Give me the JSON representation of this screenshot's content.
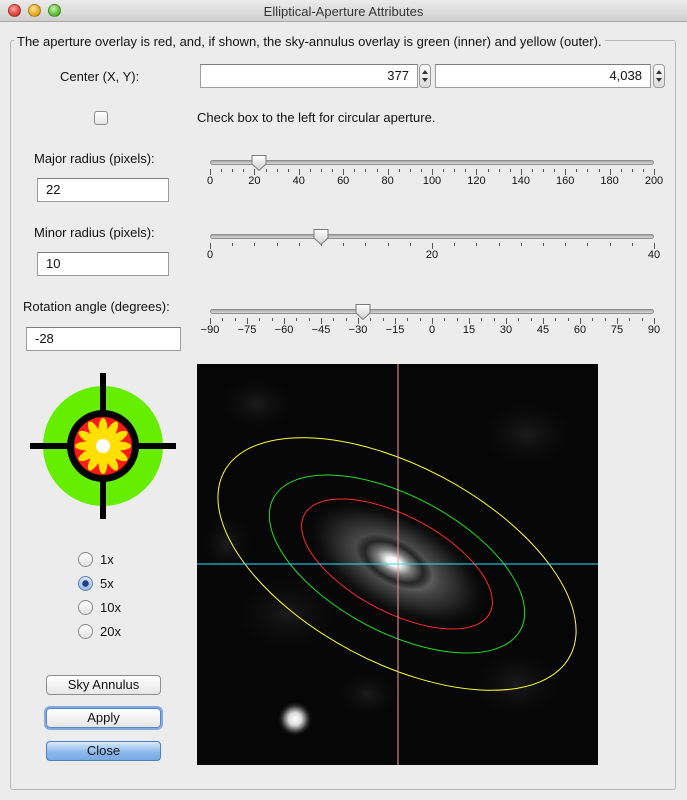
{
  "window": {
    "title": "Elliptical-Aperture Attributes"
  },
  "group_title": "The aperture overlay is red, and, if shown, the sky-annulus overlay is green (inner) and yellow (outer).",
  "center": {
    "label": "Center (X, Y):",
    "x_value": "377",
    "y_value": "4,038"
  },
  "circular": {
    "checked": false,
    "label": "Check box to the left for circular aperture."
  },
  "major": {
    "label": "Major radius (pixels):",
    "value": "22",
    "slider": {
      "min": 0,
      "max": 200,
      "value": 22,
      "major_step": 20,
      "minor_step": 5,
      "labels": [
        "0",
        "20",
        "40",
        "60",
        "80",
        "100",
        "120",
        "140",
        "160",
        "180",
        "200"
      ]
    }
  },
  "minor": {
    "label": "Minor radius (pixels):",
    "value": "10",
    "slider": {
      "min": 0,
      "max": 40,
      "value": 10,
      "major_step": 20,
      "minor_step": 2,
      "labels": [
        "0",
        "20",
        "40"
      ]
    }
  },
  "rotation": {
    "label": "Rotation angle (degrees):",
    "value": "-28",
    "slider": {
      "min": -90,
      "max": 90,
      "value": -28,
      "major_step": 15,
      "minor_step": 5,
      "labels": [
        "−90",
        "−75",
        "−60",
        "−45",
        "−30",
        "−15",
        "0",
        "15",
        "30",
        "45",
        "60",
        "75",
        "90"
      ]
    }
  },
  "icon_name": "crosshair-target-icon",
  "zoom": {
    "selected": "5x",
    "options": [
      {
        "label": "1x"
      },
      {
        "label": "5x"
      },
      {
        "label": "10x"
      },
      {
        "label": "20x"
      }
    ]
  },
  "buttons": {
    "sky_annulus": "Sky Annulus",
    "apply": "Apply",
    "close": "Close"
  },
  "overlay_colors": {
    "aperture": "#ff2a2a",
    "annulus_inner": "#22dd22",
    "annulus_outer": "#ffff33",
    "crosshair_vertical": "#ff9b9b",
    "crosshair_horizontal": "#33e0ff"
  }
}
